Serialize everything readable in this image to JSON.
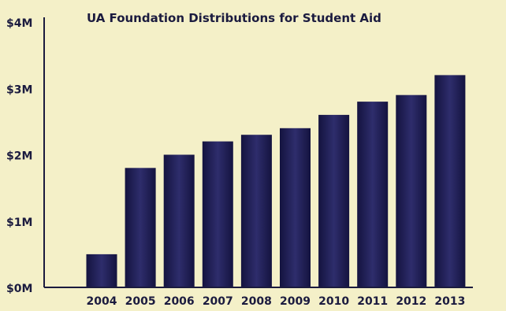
{
  "chart_data": {
    "type": "bar",
    "title": "UA Foundation Distributions for Student Aid",
    "xlabel": "",
    "ylabel": "",
    "categories": [
      "2004",
      "2005",
      "2006",
      "2007",
      "2008",
      "2009",
      "2010",
      "2011",
      "2012",
      "2013"
    ],
    "values": [
      0.5,
      1.8,
      2.0,
      2.2,
      2.3,
      2.4,
      2.6,
      2.8,
      2.9,
      3.2
    ],
    "unit": "M",
    "ylim": [
      0,
      4
    ],
    "yticks": [
      {
        "value": 0,
        "label": "$0M"
      },
      {
        "value": 1,
        "label": "$1M"
      },
      {
        "value": 2,
        "label": "$2M"
      },
      {
        "value": 3,
        "label": "$3M"
      },
      {
        "value": 4,
        "label": "$4M"
      }
    ],
    "grid": false,
    "colors": {
      "background": "#f4f0c8",
      "bar": "#1e1d55",
      "bar_highlight": "#3a3a7a",
      "text": "#1b1b3f"
    }
  }
}
